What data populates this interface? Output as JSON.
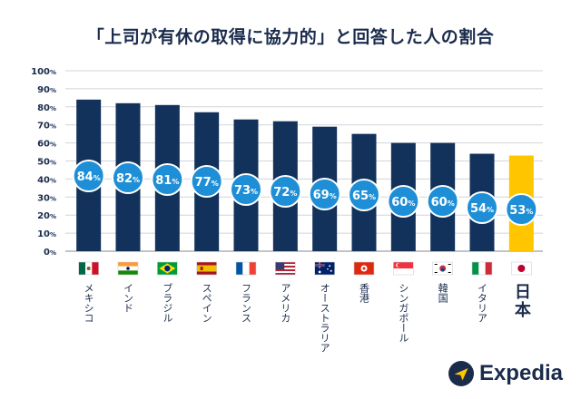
{
  "chart_data": {
    "type": "bar",
    "title": "「上司が有休の取得に協力的」と回答した人の割合",
    "categories": [
      "メキシコ",
      "インド",
      "ブラジル",
      "スペイン",
      "フランス",
      "アメリカ",
      "オーストラリア",
      "香港",
      "シンガポール",
      "韓国",
      "イタリア",
      "日本"
    ],
    "values": [
      84,
      82,
      81,
      77,
      73,
      72,
      69,
      65,
      60,
      60,
      54,
      53
    ],
    "value_labels": [
      "84",
      "82",
      "81",
      "77",
      "73",
      "72",
      "69",
      "65",
      "60",
      "60",
      "54",
      "53"
    ],
    "unit": "%",
    "ylim": [
      0,
      100
    ],
    "yticks": [
      "0%",
      "10%",
      "20%",
      "30%",
      "40%",
      "50%",
      "60%",
      "70%",
      "80%",
      "90%",
      "100%"
    ],
    "flags": [
      "mexico-flag-icon",
      "india-flag-icon",
      "brazil-flag-icon",
      "spain-flag-icon",
      "france-flag-icon",
      "usa-flag-icon",
      "australia-flag-icon",
      "hong-kong-flag-icon",
      "singapore-flag-icon",
      "korea-flag-icon",
      "italy-flag-icon",
      "japan-flag-icon"
    ],
    "highlight_index": 11,
    "colors": {
      "bar": "#13325b",
      "highlight": "#ffc600",
      "badge": "#1e8fd6",
      "text": "#1a2b4c"
    },
    "grid": true
  },
  "brand": {
    "name": "Expedia"
  }
}
